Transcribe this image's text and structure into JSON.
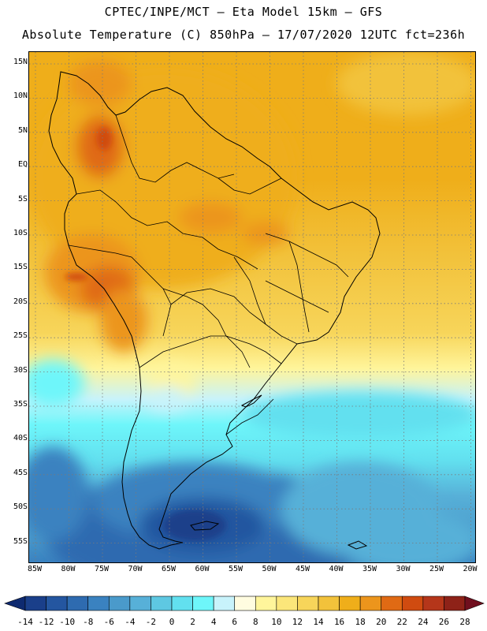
{
  "header": {
    "line1": "CPTEC/INPE/MCT –  Eta Model 15km – GFS",
    "line2": "Absolute Temperature (C) 850hPa – 17/07/2020 12UTC fct=236h"
  },
  "map": {
    "lat_ticks": [
      "15N",
      "10N",
      "5N",
      "EQ",
      "5S",
      "10S",
      "15S",
      "20S",
      "25S",
      "30S",
      "35S",
      "40S",
      "45S",
      "50S",
      "55S"
    ],
    "lon_ticks": [
      "85W",
      "80W",
      "75W",
      "70W",
      "65W",
      "60W",
      "55W",
      "50W",
      "45W",
      "40W",
      "35W",
      "30W",
      "25W",
      "20W"
    ]
  },
  "colorbar": {
    "labels": [
      "-14",
      "-12",
      "-10",
      "-8",
      "-6",
      "-4",
      "-2",
      "0",
      "2",
      "4",
      "6",
      "8",
      "10",
      "12",
      "14",
      "16",
      "18",
      "20",
      "22",
      "24",
      "26",
      "28"
    ],
    "colors": [
      "#1a3f8a",
      "#2456a0",
      "#2e6bb0",
      "#3a82c0",
      "#4a9acb",
      "#57b0d8",
      "#5ec8e2",
      "#62e0ef",
      "#6ef6fa",
      "#c8f3fb",
      "#fffce0",
      "#fff59b",
      "#fbe67a",
      "#f7d55a",
      "#f2c23b",
      "#efae1a",
      "#ec951c",
      "#e06a14",
      "#d04b10",
      "#b5361a",
      "#8e2218"
    ],
    "under_color": "#0e2a70",
    "over_color": "#700f1e"
  }
}
